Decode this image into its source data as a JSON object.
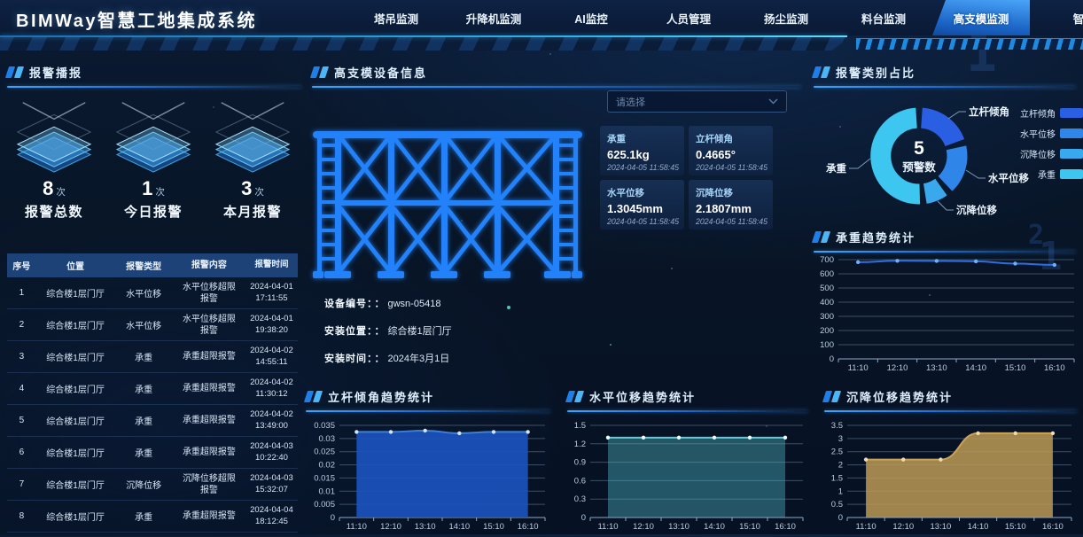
{
  "header": {
    "title": "BIMWay智慧工地集成系统",
    "tabs": [
      {
        "label": "塔吊监测",
        "active": false
      },
      {
        "label": "升降机监测",
        "active": false
      },
      {
        "label": "AI监控",
        "active": false
      },
      {
        "label": "人员管理",
        "active": false
      },
      {
        "label": "扬尘监测",
        "active": false
      },
      {
        "label": "料台监测",
        "active": false
      },
      {
        "label": "高支模监测",
        "active": true
      },
      {
        "label": "智",
        "active": false
      }
    ]
  },
  "alarm_panel": {
    "title": "报警播报",
    "stats": [
      {
        "value": "8",
        "unit": "次",
        "label": "报警总数"
      },
      {
        "value": "1",
        "unit": "次",
        "label": "今日报警"
      },
      {
        "value": "3",
        "unit": "次",
        "label": "本月报警"
      }
    ],
    "table": {
      "headers": [
        "序号",
        "位置",
        "报警类型",
        "报警内容",
        "报警时间"
      ],
      "rows": [
        {
          "no": "1",
          "location": "综合楼1层门厅",
          "type": "水平位移",
          "content": "水平位移超限报警",
          "date": "2024-04-01",
          "time": "17:11:55"
        },
        {
          "no": "2",
          "location": "综合楼1层门厅",
          "type": "水平位移",
          "content": "水平位移超限报警",
          "date": "2024-04-01",
          "time": "19:38:20"
        },
        {
          "no": "3",
          "location": "综合楼1层门厅",
          "type": "承重",
          "content": "承重超限报警",
          "date": "2024-04-02",
          "time": "14:55:11"
        },
        {
          "no": "4",
          "location": "综合楼1层门厅",
          "type": "承重",
          "content": "承重超限报警",
          "date": "2024-04-02",
          "time": "11:30:12"
        },
        {
          "no": "5",
          "location": "综合楼1层门厅",
          "type": "承重",
          "content": "承重超限报警",
          "date": "2024-04-02",
          "time": "13:49:00"
        },
        {
          "no": "6",
          "location": "综合楼1层门厅",
          "type": "承重",
          "content": "承重超限报警",
          "date": "2024-04-03",
          "time": "10:22:40"
        },
        {
          "no": "7",
          "location": "综合楼1层门厅",
          "type": "沉降位移",
          "content": "沉降位移超限报警",
          "date": "2024-04-03",
          "time": "15:32:07"
        },
        {
          "no": "8",
          "location": "综合楼1层门厅",
          "type": "承重",
          "content": "承重超限报警",
          "date": "2024-04-04",
          "time": "18:12:45"
        }
      ]
    }
  },
  "device_panel": {
    "title": "高支模设备信息",
    "select_placeholder": "请选择",
    "metrics": [
      {
        "label": "承重",
        "value": "625.1kg",
        "time": "2024-04-05 11:58:45"
      },
      {
        "label": "立杆倾角",
        "value": "0.4665°",
        "time": "2024-04-05 11:58:45"
      },
      {
        "label": "水平位移",
        "value": "1.3045mm",
        "time": "2024-04-05 11:58:45"
      },
      {
        "label": "沉降位移",
        "value": "2.1807mm",
        "time": "2024-04-05 11:58:45"
      }
    ],
    "info": {
      "colon": "：",
      "fields": [
        {
          "label": "设备编号：",
          "value": "gwsn-05418"
        },
        {
          "label": "安装位置：",
          "value": "综合楼1层门厅"
        },
        {
          "label": "安装时间：",
          "value": "2024年3月1日"
        }
      ]
    }
  },
  "chart_data": [
    {
      "type": "pie",
      "title": "报警类别占比",
      "center_value": "5",
      "center_label": "预警数",
      "legend_position": "right",
      "slices": [
        {
          "name": "立杆倾角",
          "value": 20,
          "color": "#2b5fe3"
        },
        {
          "name": "水平位移",
          "value": 18,
          "color": "#2f86e8"
        },
        {
          "name": "沉降位移",
          "value": 8,
          "color": "#3aa8ed"
        },
        {
          "name": "承重",
          "value": 54,
          "color": "#3cc6f0"
        }
      ]
    },
    {
      "type": "line",
      "title": "承重趋势统计",
      "x": [
        "11:10",
        "12:10",
        "13:10",
        "14:10",
        "15:10",
        "16:10"
      ],
      "values": [
        682,
        692,
        691,
        688,
        672,
        663
      ],
      "ylim": [
        0,
        700
      ],
      "yticks": [
        0,
        100,
        200,
        300,
        400,
        500,
        600,
        700
      ],
      "ytick_labels": [
        "0",
        "100",
        "200",
        "300",
        "400",
        "500",
        "600",
        "700"
      ],
      "grid": true,
      "color": "#2e6fe0",
      "dot": "#6fb0f8"
    },
    {
      "type": "area",
      "title": "立杆倾角趋势统计",
      "x": [
        "11:10",
        "12:10",
        "13:10",
        "14:10",
        "15:10",
        "16:10"
      ],
      "values": [
        0.0325,
        0.0325,
        0.033,
        0.032,
        0.0325,
        0.0325
      ],
      "ylim": [
        0,
        0.035
      ],
      "yticks": [
        0,
        0.005,
        0.01,
        0.015,
        0.02,
        0.025,
        0.03,
        0.035
      ],
      "ytick_labels": [
        "0",
        "0.005",
        "0.01",
        "0.015",
        "0.02",
        "0.025",
        "0.03",
        "0.035"
      ],
      "grid": true,
      "color": "#3f7fd8",
      "fill": "#1c52bd",
      "fill_opacity": 0.92,
      "dot": "#cfe6ff"
    },
    {
      "type": "area",
      "title": "水平位移趋势统计",
      "x": [
        "11:10",
        "12:10",
        "13:10",
        "14:10",
        "15:10",
        "16:10"
      ],
      "values": [
        1.3,
        1.3,
        1.3,
        1.3,
        1.3,
        1.3
      ],
      "ylim": [
        0,
        1.5
      ],
      "yticks": [
        0,
        0.3,
        0.6,
        0.9,
        1.2,
        1.5
      ],
      "ytick_labels": [
        "0",
        "0.3",
        "0.6",
        "0.9",
        "1.2",
        "1.5"
      ],
      "grid": true,
      "color": "#62ccd8",
      "fill": "#4cb4c4",
      "fill_opacity": 0.42,
      "dot": "#e8fbff"
    },
    {
      "type": "area",
      "title": "沉降位移趋势统计",
      "x": [
        "11:10",
        "12:10",
        "13:10",
        "14:10",
        "15:10",
        "16:10"
      ],
      "values": [
        2.2,
        2.2,
        2.2,
        3.2,
        3.2,
        3.2
      ],
      "ylim": [
        0,
        3.5
      ],
      "yticks": [
        0,
        0.5,
        1,
        1.5,
        2,
        2.5,
        3,
        3.5
      ],
      "ytick_labels": [
        "0",
        "0.5",
        "1",
        "1.5",
        "2",
        "2.5",
        "3",
        "3.5"
      ],
      "grid": true,
      "color": "#caa255",
      "fill": "#bb9a55",
      "fill_opacity": 0.85,
      "dot": "#f0dcab"
    }
  ],
  "decor": {
    "digits": [
      "2",
      "1",
      "2",
      "1"
    ]
  }
}
